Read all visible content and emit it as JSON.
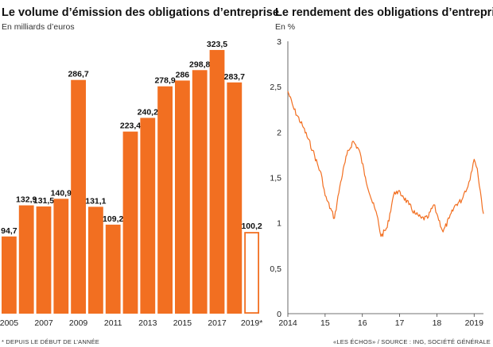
{
  "chart_data": [
    {
      "type": "bar",
      "title": "Le volume d’émission des obligations d’entreprise",
      "subtitle": "En milliards d’euros",
      "categories": [
        "2005",
        "2006",
        "2007",
        "2008",
        "2009",
        "2010",
        "2011",
        "2012",
        "2013",
        "2014",
        "2015",
        "2016",
        "2017",
        "2018",
        "2019*"
      ],
      "values": [
        94.7,
        132.9,
        131.5,
        140.9,
        286.7,
        131.1,
        109.2,
        223.4,
        240.2,
        278.9,
        286,
        298.8,
        323.5,
        283.7,
        100.2
      ],
      "value_labels": [
        "94,7",
        "132,9",
        "131,5",
        "140,9",
        "286,7",
        "131,1",
        "109,2",
        "223,4",
        "240,2",
        "278,9",
        "286",
        "298,8",
        "323,5",
        "283,7",
        "100,2"
      ],
      "x_tick_labels": [
        "2005",
        "2007",
        "2009",
        "2011",
        "2013",
        "2015",
        "2017",
        "2019*"
      ],
      "highlight_last": "outlined bar (partial year)",
      "ylim": [
        0,
        340
      ],
      "grid": false,
      "colors": {
        "bar": "#f26f21",
        "text": "#111111"
      }
    },
    {
      "type": "line",
      "title": "Le rendement des obligations d’entreprise",
      "subtitle": "En %",
      "x": [
        "2014-01",
        "2014-03",
        "2014-06",
        "2014-09",
        "2014-12",
        "2015-01",
        "2015-04",
        "2015-06",
        "2015-08",
        "2015-10",
        "2015-12",
        "2016-02",
        "2016-04",
        "2016-06",
        "2016-07",
        "2016-09",
        "2016-11",
        "2016-12",
        "2017-02",
        "2017-04",
        "2017-06",
        "2017-08",
        "2017-10",
        "2017-12",
        "2018-01",
        "2018-03",
        "2018-05",
        "2018-07",
        "2018-09",
        "2018-10",
        "2018-11",
        "2018-12",
        "2019-01",
        "2019-02",
        "2019-03",
        "2019-04"
      ],
      "y": [
        2.45,
        2.25,
        2.05,
        1.8,
        1.5,
        1.3,
        1.05,
        1.45,
        1.75,
        1.9,
        1.8,
        1.5,
        1.25,
        1.05,
        0.85,
        0.95,
        1.3,
        1.35,
        1.3,
        1.2,
        1.1,
        1.05,
        1.05,
        1.2,
        1.1,
        0.9,
        1.05,
        1.2,
        1.25,
        1.35,
        1.4,
        1.55,
        1.7,
        1.6,
        1.35,
        1.1
      ],
      "y_tick_labels": [
        "0",
        "0,5",
        "1",
        "1,5",
        "2",
        "2,5",
        "3"
      ],
      "y_ticks": [
        0,
        0.5,
        1,
        1.5,
        2,
        2.5,
        3
      ],
      "x_tick_labels": [
        "2014",
        "15",
        "16",
        "17",
        "18",
        "2019"
      ],
      "ylim": [
        0,
        3
      ],
      "grid": false,
      "colors": {
        "line": "#f26f21"
      }
    }
  ],
  "footer": {
    "left": "* DEPUIS LE DÉBUT DE L’ANNÉE",
    "right": "«LES ÉCHOS» / SOURCE : ING, SOCIÉTÉ GÉNÉRALE"
  }
}
